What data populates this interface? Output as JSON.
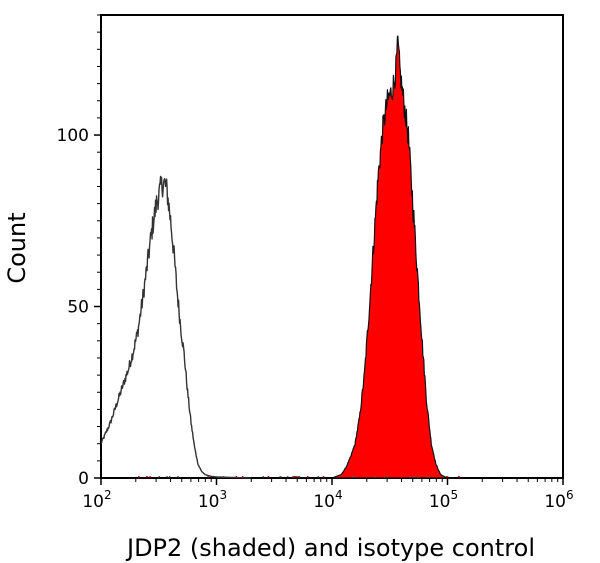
{
  "chart_data": {
    "type": "histogram",
    "title": "",
    "xlabel": "JDP2 (shaded) and isotype control",
    "ylabel": "Count",
    "x_scale": "log10",
    "xlim": [
      100,
      1000000
    ],
    "ylim": [
      0,
      135
    ],
    "x_ticks": [
      {
        "value": 100,
        "base": "10",
        "exp": "2"
      },
      {
        "value": 1000,
        "base": "10",
        "exp": "3"
      },
      {
        "value": 10000,
        "base": "10",
        "exp": "4"
      },
      {
        "value": 100000,
        "base": "10",
        "exp": "5"
      },
      {
        "value": 1000000,
        "base": "10",
        "exp": "6"
      }
    ],
    "y_ticks": [
      {
        "value": 0,
        "label": "0"
      },
      {
        "value": 50,
        "label": "50"
      },
      {
        "value": 100,
        "label": "100"
      }
    ],
    "series": [
      {
        "name": "isotype control",
        "style": "outline",
        "color": "#333333",
        "points": [
          [
            2.0,
            10
          ],
          [
            2.04,
            13
          ],
          [
            2.08,
            16
          ],
          [
            2.12,
            20
          ],
          [
            2.16,
            24
          ],
          [
            2.2,
            28
          ],
          [
            2.24,
            32
          ],
          [
            2.28,
            37
          ],
          [
            2.32,
            43
          ],
          [
            2.36,
            52
          ],
          [
            2.4,
            62
          ],
          [
            2.44,
            72
          ],
          [
            2.48,
            80
          ],
          [
            2.52,
            85
          ],
          [
            2.55,
            86
          ],
          [
            2.57,
            84
          ],
          [
            2.6,
            76
          ],
          [
            2.63,
            66
          ],
          [
            2.66,
            54
          ],
          [
            2.69,
            44
          ],
          [
            2.72,
            36
          ],
          [
            2.75,
            25
          ],
          [
            2.78,
            16
          ],
          [
            2.81,
            9
          ],
          [
            2.84,
            4
          ],
          [
            2.87,
            2
          ],
          [
            2.9,
            1
          ],
          [
            2.95,
            0.5
          ],
          [
            3.0,
            0.3
          ],
          [
            3.1,
            0.2
          ],
          [
            3.3,
            0
          ]
        ]
      },
      {
        "name": "JDP2",
        "style": "filled",
        "color": "#ff0000",
        "points": [
          [
            4.0,
            0
          ],
          [
            4.08,
            1
          ],
          [
            4.12,
            3
          ],
          [
            4.16,
            6
          ],
          [
            4.2,
            10
          ],
          [
            4.24,
            18
          ],
          [
            4.28,
            30
          ],
          [
            4.32,
            48
          ],
          [
            4.36,
            68
          ],
          [
            4.4,
            88
          ],
          [
            4.44,
            102
          ],
          [
            4.48,
            110
          ],
          [
            4.52,
            113
          ],
          [
            4.55,
            118
          ],
          [
            4.57,
            127
          ],
          [
            4.59,
            118
          ],
          [
            4.62,
            110
          ],
          [
            4.66,
            100
          ],
          [
            4.7,
            80
          ],
          [
            4.74,
            60
          ],
          [
            4.78,
            40
          ],
          [
            4.82,
            22
          ],
          [
            4.86,
            10
          ],
          [
            4.9,
            4
          ],
          [
            4.94,
            1
          ],
          [
            4.98,
            0.3
          ],
          [
            5.05,
            0
          ]
        ]
      }
    ]
  }
}
